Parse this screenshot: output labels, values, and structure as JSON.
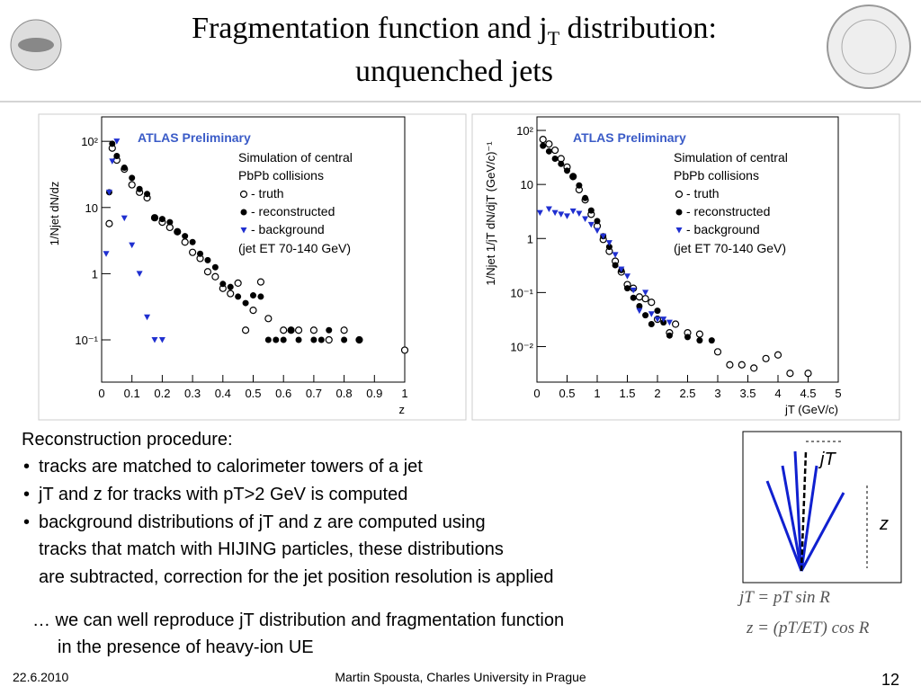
{
  "header": {
    "title_line1_a": "Fragmentation function and j",
    "title_line1_sub": "T",
    "title_line1_b": " distribution:",
    "title_line2": "unquenched jets"
  },
  "chart_data": [
    {
      "type": "scatter",
      "x_label": "z",
      "y_label": "1/Njet dN/dz",
      "log_y": true,
      "annotations": [
        "ATLAS Preliminary",
        "Simulation of central",
        "PbPb collisions",
        "(jet ET 70-140 GeV)"
      ],
      "xlim": [
        0,
        1
      ],
      "xticks": [
        0,
        0.1,
        0.2,
        0.3,
        0.4,
        0.5,
        0.6,
        0.7,
        0.8,
        0.9,
        1
      ],
      "ylim": [
        0.023,
        234
      ],
      "yticks": [
        {
          "value": 0.1,
          "label": "10⁻¹"
        },
        1,
        10,
        {
          "value": 100,
          "label": "10²"
        }
      ],
      "series": [
        {
          "name": "- truth",
          "marker": "open-circle",
          "color": "#000000",
          "x": [
            0.025,
            0.035,
            0.05,
            0.075,
            0.1,
            0.125,
            0.15,
            0.175,
            0.2,
            0.225,
            0.25,
            0.275,
            0.3,
            0.325,
            0.35,
            0.375,
            0.4,
            0.425,
            0.45,
            0.475,
            0.5,
            0.525,
            0.55,
            0.6,
            0.625,
            0.65,
            0.7,
            0.75,
            0.8,
            0.85,
            1.0
          ],
          "values": [
            5.7,
            79,
            52,
            38,
            22,
            17,
            14,
            7,
            6,
            5,
            4.3,
            3,
            2.1,
            1.7,
            1.07,
            0.9,
            0.6,
            0.5,
            0.72,
            0.14,
            0.28,
            0.75,
            0.21,
            0.14,
            0.14,
            0.14,
            0.14,
            0.1,
            0.14,
            0.1,
            0.07
          ]
        },
        {
          "name": "- reconstructed",
          "marker": "filled-circle",
          "color": "#000000",
          "x": [
            0.025,
            0.035,
            0.05,
            0.075,
            0.1,
            0.125,
            0.15,
            0.175,
            0.2,
            0.225,
            0.25,
            0.275,
            0.3,
            0.325,
            0.35,
            0.375,
            0.4,
            0.425,
            0.45,
            0.475,
            0.5,
            0.525,
            0.55,
            0.575,
            0.6,
            0.625,
            0.65,
            0.7,
            0.725,
            0.75,
            0.8,
            0.85
          ],
          "values": [
            17,
            92,
            60,
            40,
            28,
            19,
            16,
            7,
            6.7,
            6,
            4.3,
            3.7,
            3,
            2,
            1.6,
            1.25,
            0.7,
            0.63,
            0.45,
            0.36,
            0.47,
            0.45,
            0.1,
            0.1,
            0.1,
            0.14,
            0.1,
            0.1,
            0.1,
            0.14,
            0.1,
            0.1
          ]
        },
        {
          "name": "- background",
          "marker": "triangle-down",
          "color": "#1f2fd0",
          "x": [
            0.015,
            0.025,
            0.035,
            0.05,
            0.075,
            0.1,
            0.125,
            0.15,
            0.175,
            0.2
          ],
          "values": [
            2.0,
            17,
            50,
            100,
            6.9,
            2.7,
            1.0,
            0.22,
            0.1,
            0.1
          ]
        }
      ]
    },
    {
      "type": "scatter",
      "x_label": "jT (GeV/c)",
      "y_label": "1/Njet 1/jT dN/djT (GeV/c)⁻¹",
      "log_y": true,
      "annotations": [
        "ATLAS Preliminary",
        "Simulation of central",
        "PbPb collisions",
        "(jet ET 70-140 GeV)"
      ],
      "xlim": [
        0,
        5
      ],
      "xticks": [
        0,
        0.5,
        1,
        1.5,
        2,
        2.5,
        3,
        3.5,
        4,
        4.5,
        5
      ],
      "ylim": [
        0.0022,
        178
      ],
      "yticks": [
        {
          "value": 0.01,
          "label": "10⁻²"
        },
        {
          "value": 0.1,
          "label": "10⁻¹"
        },
        1,
        10,
        {
          "value": 100,
          "label": "10²"
        }
      ],
      "series": [
        {
          "name": "- truth",
          "marker": "open-circle",
          "color": "#000000",
          "x": [
            0.1,
            0.2,
            0.3,
            0.4,
            0.5,
            0.6,
            0.7,
            0.8,
            0.9,
            1.0,
            1.1,
            1.2,
            1.3,
            1.4,
            1.5,
            1.6,
            1.7,
            1.8,
            1.9,
            2.0,
            2.2,
            2.3,
            2.5,
            2.7,
            3.0,
            3.2,
            3.4,
            3.6,
            3.8,
            4.0,
            4.2,
            4.5
          ],
          "values": [
            68,
            56,
            43,
            30,
            21,
            14,
            8,
            5.2,
            2.8,
            1.7,
            0.96,
            0.58,
            0.38,
            0.24,
            0.14,
            0.12,
            0.083,
            0.077,
            0.066,
            0.032,
            0.018,
            0.026,
            0.018,
            0.017,
            0.008,
            0.0046,
            0.0046,
            0.004,
            0.006,
            0.007,
            0.0032,
            0.0032
          ]
        },
        {
          "name": "- reconstructed",
          "marker": "filled-circle",
          "color": "#000000",
          "x": [
            0.1,
            0.2,
            0.3,
            0.4,
            0.5,
            0.6,
            0.7,
            0.8,
            0.9,
            1.0,
            1.1,
            1.2,
            1.3,
            1.4,
            1.5,
            1.6,
            1.7,
            1.8,
            1.9,
            2.0,
            2.1,
            2.2,
            2.5,
            2.7,
            2.9
          ],
          "values": [
            52,
            41,
            30,
            24,
            18,
            14,
            9.6,
            5.6,
            3.3,
            2.1,
            1.1,
            0.7,
            0.32,
            0.26,
            0.12,
            0.08,
            0.056,
            0.038,
            0.026,
            0.046,
            0.028,
            0.016,
            0.015,
            0.013,
            0.013
          ]
        },
        {
          "name": "- background",
          "marker": "triangle-down",
          "color": "#1f2fd0",
          "x": [
            0.05,
            0.2,
            0.3,
            0.4,
            0.5,
            0.6,
            0.7,
            0.8,
            0.9,
            1.0,
            1.1,
            1.2,
            1.3,
            1.4,
            1.5,
            1.6,
            1.7,
            1.8,
            1.9,
            2.0,
            2.1,
            2.2
          ],
          "values": [
            3.0,
            3.5,
            3.0,
            2.8,
            2.6,
            3.2,
            2.9,
            2.3,
            1.8,
            1.4,
            1.1,
            0.83,
            0.5,
            0.27,
            0.2,
            0.11,
            0.046,
            0.1,
            0.04,
            0.032,
            0.032,
            0.028
          ]
        }
      ]
    }
  ],
  "body": {
    "heading": "Reconstruction procedure:",
    "bullets": [
      "tracks are matched to calorimeter towers of a jet",
      "jT and z for tracks with pT>2 GeV is computed",
      "background distributions of jT and z are computed using"
    ],
    "continuation": [
      "tracks that match with HIJING particles, these distributions",
      "are subtracted, correction for the jet position resolution is applied"
    ],
    "conclusion": [
      "… we can well reproduce jT distribution and fragmentation function",
      "in the presence of heavy-ion UE"
    ]
  },
  "diagram": {
    "jt_label": "jT",
    "z_label": "z",
    "formula1": "jT = pT sin R",
    "formula2": "z = (pT/ET) cos R"
  },
  "footer": {
    "date": "22.6.2010",
    "author": "Martin Spousta,  Charles University in Prague",
    "page": "12"
  }
}
